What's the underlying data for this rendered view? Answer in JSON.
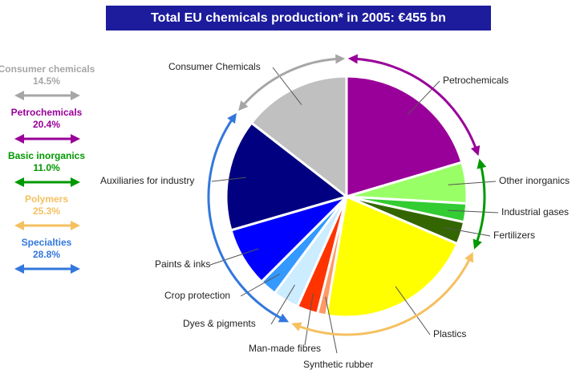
{
  "chart_data": {
    "type": "pie",
    "title": "Total EU chemicals production* in 2005: €455 bn",
    "categories": [
      "Petrochemicals",
      "Other inorganics",
      "Industrial gases",
      "Fertilizers",
      "Plastics",
      "Synthetic rubber",
      "Man-made fibres",
      "Dyes & pigments",
      "Crop protection",
      "Paints & inks",
      "Auxiliaries for industry",
      "Consumer Chemicals"
    ],
    "values": [
      20.4,
      5.5,
      2.5,
      3.0,
      21.3,
      1.2,
      2.8,
      3.5,
      2.3,
      8.0,
      15.0,
      14.5
    ],
    "colors": [
      "#990099",
      "#99ff66",
      "#33cc33",
      "#336600",
      "#ffff00",
      "#ff9966",
      "#ff3300",
      "#ccecff",
      "#3399ff",
      "#0000ff",
      "#000080",
      "#c0c0c0"
    ],
    "groups": [
      {
        "name": "Consumer chemicals",
        "value": 14.5,
        "value_label": "14.5%",
        "color": "#a6a6a6"
      },
      {
        "name": "Petrochemicals",
        "value": 20.4,
        "value_label": "20.4%",
        "color": "#990099"
      },
      {
        "name": "Basic inorganics",
        "value": 11.0,
        "value_label": "11.0%",
        "color": "#009900"
      },
      {
        "name": "Polymers",
        "value": 25.3,
        "value_label": "25.3%",
        "color": "#f5c060"
      },
      {
        "name": "Specialties",
        "value": 28.8,
        "value_label": "28.8%",
        "color": "#3377dd"
      }
    ]
  }
}
